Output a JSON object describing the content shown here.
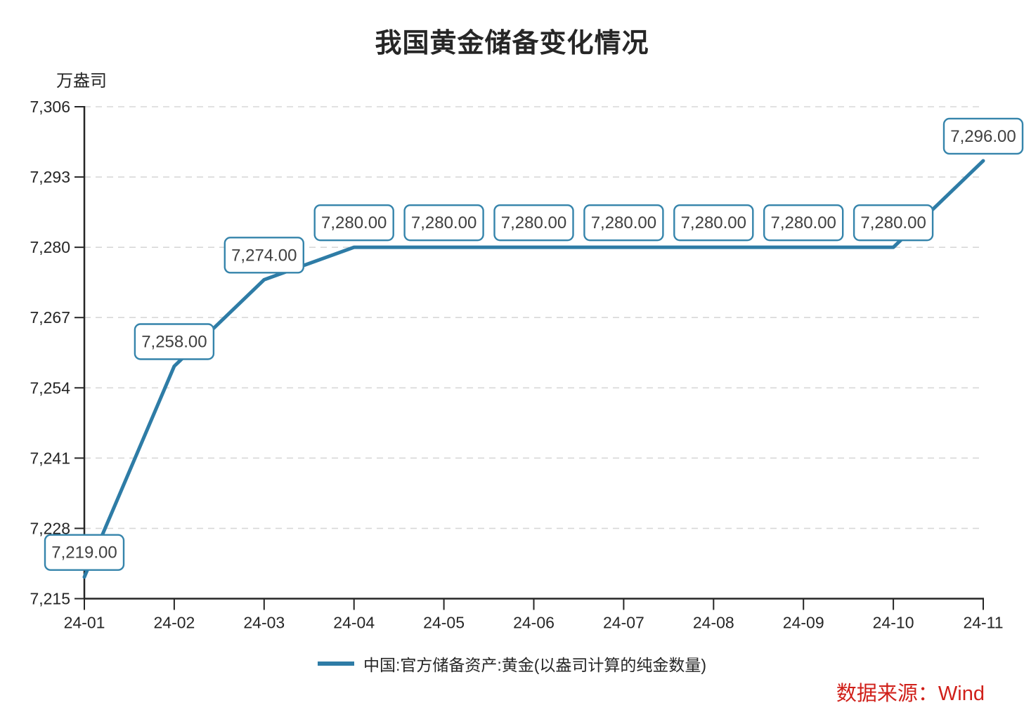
{
  "chart_data": {
    "type": "line",
    "title": "我国黄金储备变化情况",
    "y_unit_label": "万盎司",
    "categories": [
      "24-01",
      "24-02",
      "24-03",
      "24-04",
      "24-05",
      "24-06",
      "24-07",
      "24-08",
      "24-09",
      "24-10",
      "24-11"
    ],
    "series": [
      {
        "name": "中国:官方储备资产:黄金(以盎司计算的纯金数量)",
        "values": [
          7219,
          7258,
          7274,
          7280,
          7280,
          7280,
          7280,
          7280,
          7280,
          7280,
          7296
        ],
        "color": "#2e7ca6"
      }
    ],
    "data_labels": [
      "7,219.00",
      "7,258.00",
      "7,274.00",
      "7,280.00",
      "7,280.00",
      "7,280.00",
      "7,280.00",
      "7,280.00",
      "7,280.00",
      "7,280.00",
      "7,296.00"
    ],
    "ylim": [
      7215,
      7306
    ],
    "y_ticks": [
      7215,
      7228,
      7241,
      7254,
      7267,
      7280,
      7293,
      7306
    ],
    "y_tick_labels": [
      "7,215",
      "7,228",
      "7,241",
      "7,254",
      "7,267",
      "7,280",
      "7,293",
      "7,306"
    ],
    "grid": "horizontal-dashed",
    "legend_position": "bottom-center",
    "source_note": "数据来源：Wind",
    "colors": {
      "line": "#2e7ca6",
      "label_box_border": "#3584ab",
      "label_box_fill": "#ffffff",
      "label_text": "#404040",
      "grid": "#d8d8d8",
      "axis": "#262626",
      "tick_text": "#262626",
      "source_text": "#d0201a"
    }
  }
}
